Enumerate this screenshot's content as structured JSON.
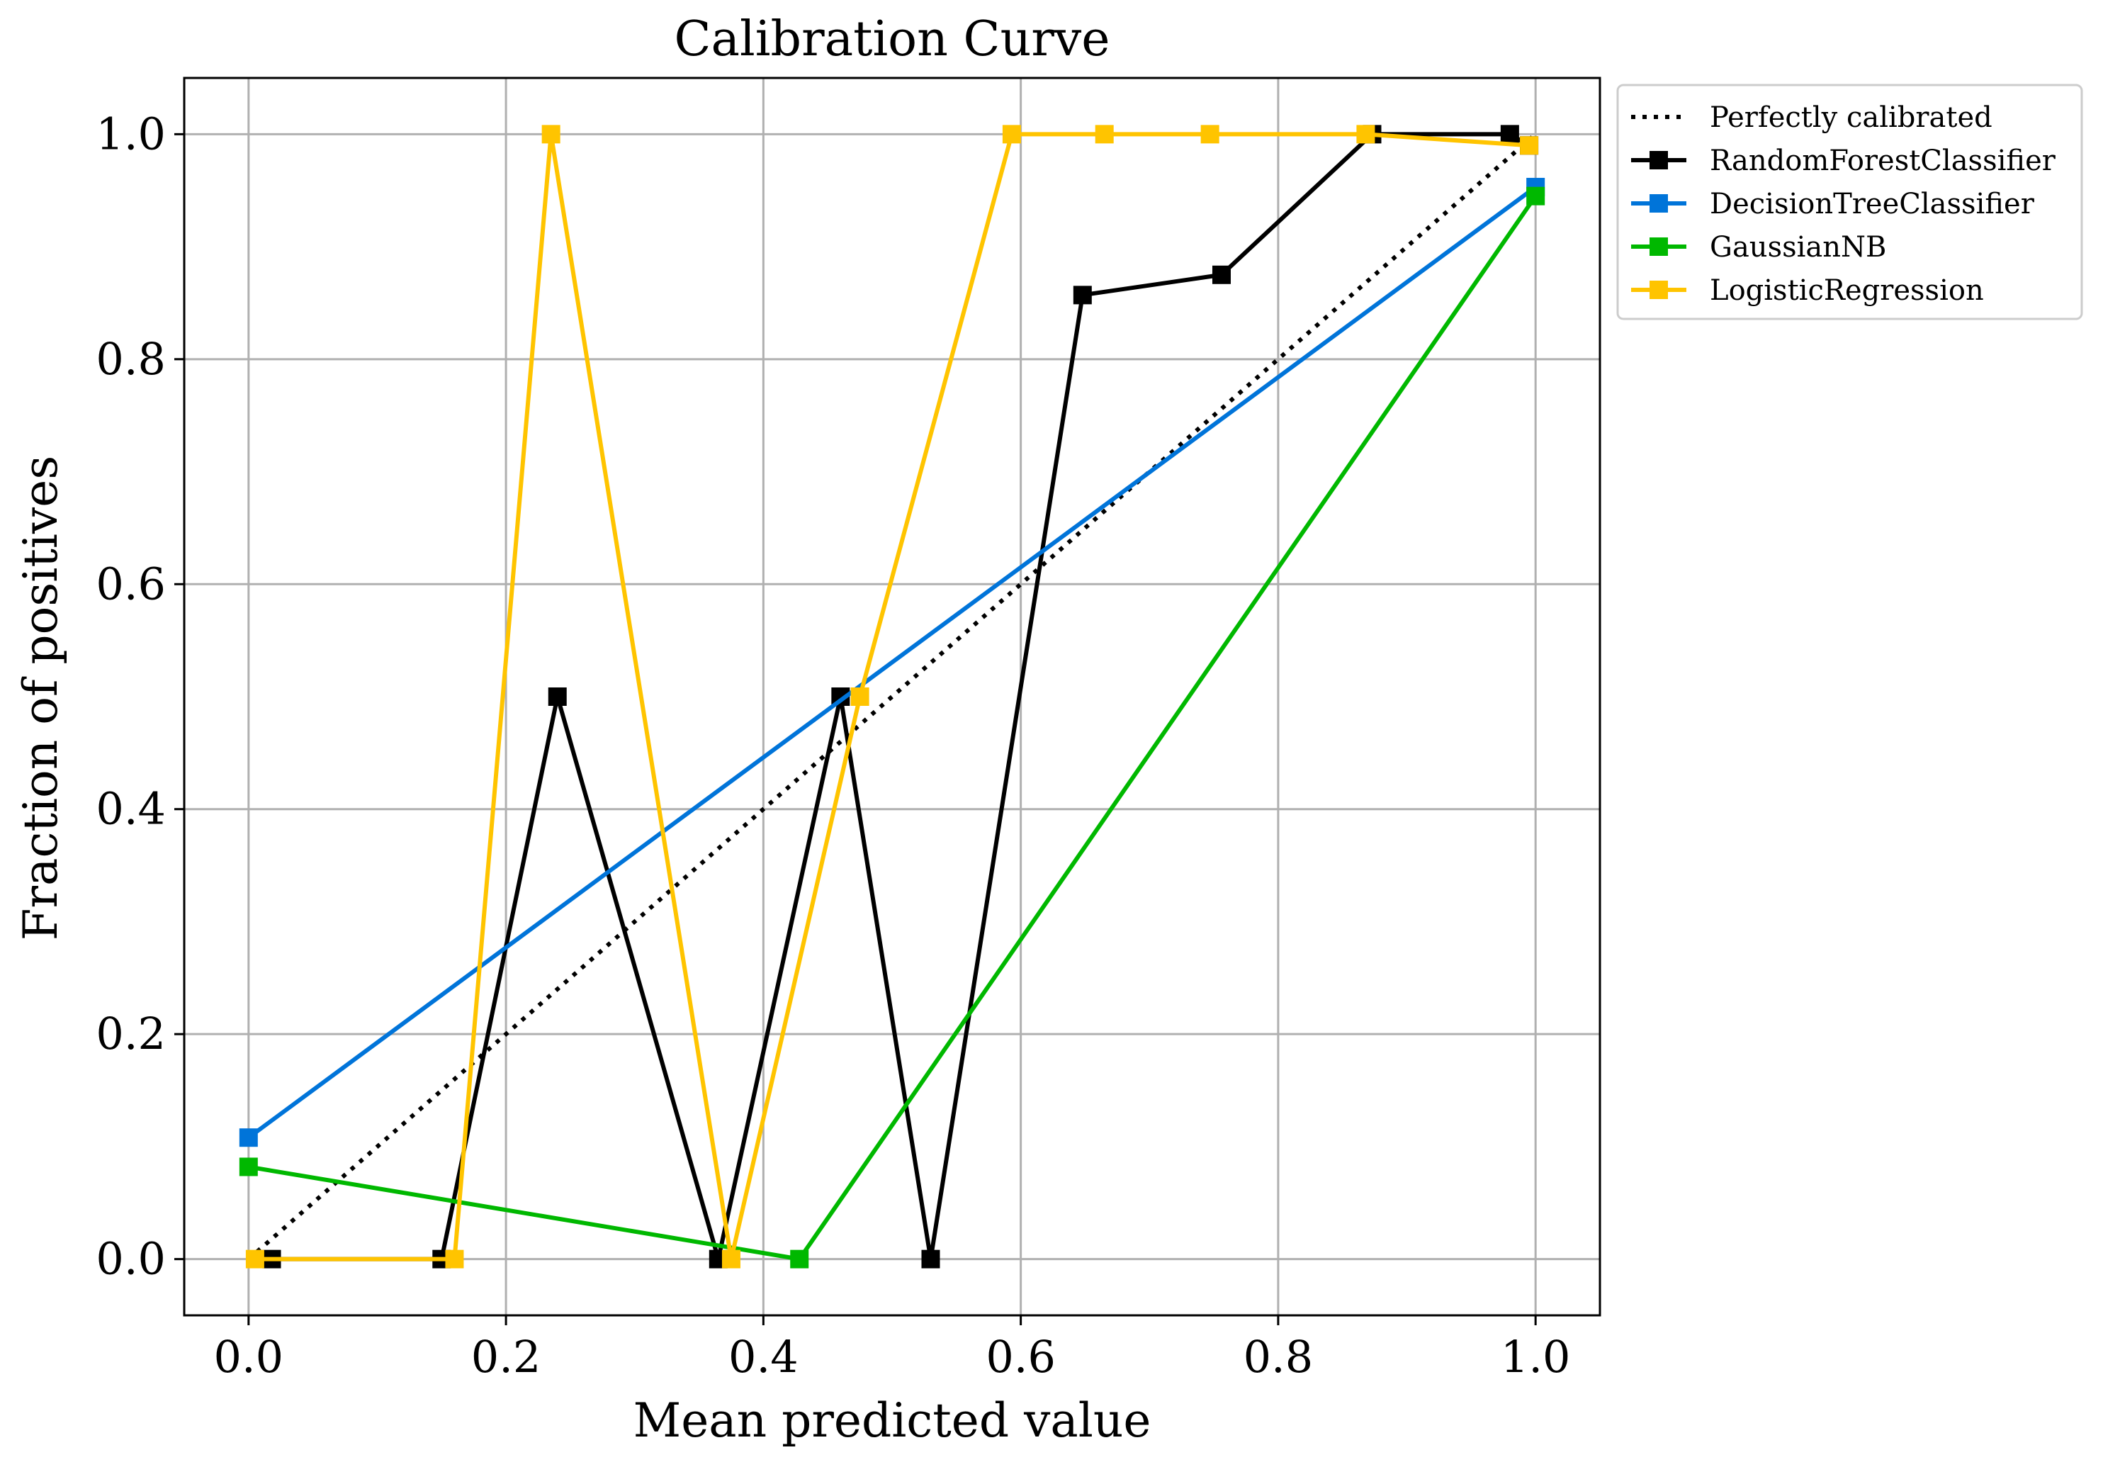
{
  "chart_data": {
    "type": "line",
    "title": "Calibration Curve",
    "xlabel": "Mean predicted value",
    "ylabel": "Fraction of positives",
    "xlim": [
      -0.05,
      1.05
    ],
    "ylim": [
      -0.05,
      1.05
    ],
    "xticks": [
      "0.0",
      "0.2",
      "0.4",
      "0.6",
      "0.8",
      "1.0"
    ],
    "yticks": [
      "0.0",
      "0.2",
      "0.4",
      "0.6",
      "0.8",
      "1.0"
    ],
    "grid": true,
    "legend_position": "outside-top-right",
    "reference": {
      "name": "Perfectly calibrated",
      "color": "#000000",
      "style": "dotted",
      "x": [
        0,
        1
      ],
      "y": [
        0,
        1
      ]
    },
    "series": [
      {
        "name": "RandomForestClassifier",
        "color": "#000000",
        "marker": "square",
        "x": [
          0.018,
          0.15,
          0.24,
          0.365,
          0.46,
          0.53,
          0.648,
          0.756,
          0.873,
          0.98,
          0.995
        ],
        "y": [
          0.0,
          0.0,
          0.5,
          0.0,
          0.5,
          0.0,
          0.857,
          0.875,
          1.0,
          1.0,
          0.99
        ]
      },
      {
        "name": "DecisionTreeClassifier",
        "color": "#0074D9",
        "marker": "square",
        "x": [
          0.0,
          1.0
        ],
        "y": [
          0.108,
          0.953
        ]
      },
      {
        "name": "GaussianNB",
        "color": "#00B800",
        "marker": "square",
        "x": [
          0.0,
          0.428,
          1.0
        ],
        "y": [
          0.082,
          0.0,
          0.945
        ]
      },
      {
        "name": "LogisticRegression",
        "color": "#FFC400",
        "marker": "square",
        "x": [
          0.005,
          0.16,
          0.235,
          0.375,
          0.475,
          0.593,
          0.665,
          0.747,
          0.868,
          0.995
        ],
        "y": [
          0.0,
          0.0,
          1.0,
          0.0,
          0.5,
          1.0,
          1.0,
          1.0,
          1.0,
          0.99
        ]
      }
    ]
  }
}
